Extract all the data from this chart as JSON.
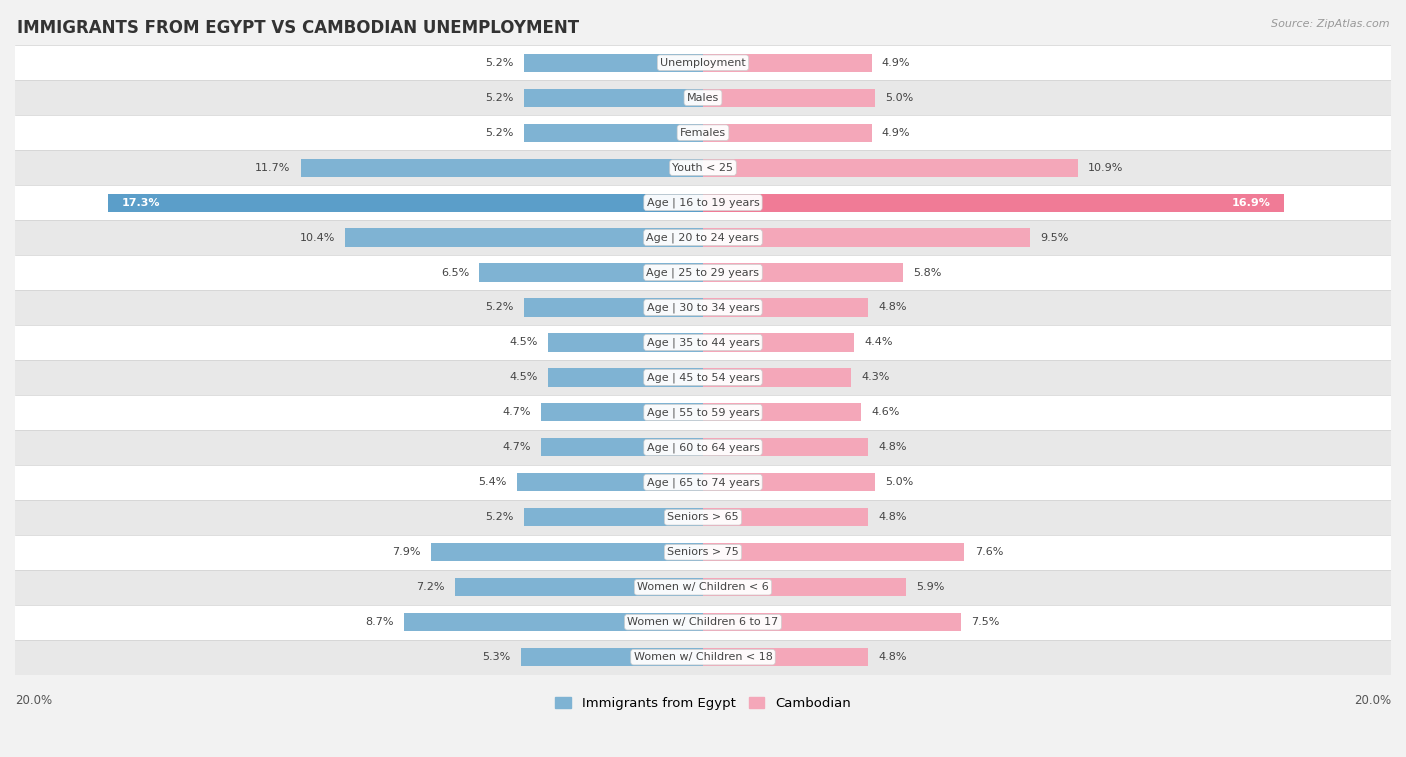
{
  "title": "IMMIGRANTS FROM EGYPT VS CAMBODIAN UNEMPLOYMENT",
  "source": "Source: ZipAtlas.com",
  "categories": [
    "Unemployment",
    "Males",
    "Females",
    "Youth < 25",
    "Age | 16 to 19 years",
    "Age | 20 to 24 years",
    "Age | 25 to 29 years",
    "Age | 30 to 34 years",
    "Age | 35 to 44 years",
    "Age | 45 to 54 years",
    "Age | 55 to 59 years",
    "Age | 60 to 64 years",
    "Age | 65 to 74 years",
    "Seniors > 65",
    "Seniors > 75",
    "Women w/ Children < 6",
    "Women w/ Children 6 to 17",
    "Women w/ Children < 18"
  ],
  "egypt_values": [
    5.2,
    5.2,
    5.2,
    11.7,
    17.3,
    10.4,
    6.5,
    5.2,
    4.5,
    4.5,
    4.7,
    4.7,
    5.4,
    5.2,
    7.9,
    7.2,
    8.7,
    5.3
  ],
  "cambodian_values": [
    4.9,
    5.0,
    4.9,
    10.9,
    16.9,
    9.5,
    5.8,
    4.8,
    4.4,
    4.3,
    4.6,
    4.8,
    5.0,
    4.8,
    7.6,
    5.9,
    7.5,
    4.8
  ],
  "egypt_color": "#7fb3d3",
  "cambodian_color": "#f4a7b9",
  "egypt_highlight_color": "#5b9ec9",
  "cambodian_highlight_color": "#f07b96",
  "highlight_row": 4,
  "xlim": 20.0,
  "background_color": "#f2f2f2",
  "row_bg_light": "#ffffff",
  "row_bg_dark": "#e8e8e8",
  "row_border": "#d0d0d0",
  "legend_egypt": "Immigrants from Egypt",
  "legend_cambodian": "Cambodian",
  "label_fontsize": 8.0,
  "value_fontsize": 8.0,
  "title_fontsize": 12,
  "bar_height": 0.52
}
